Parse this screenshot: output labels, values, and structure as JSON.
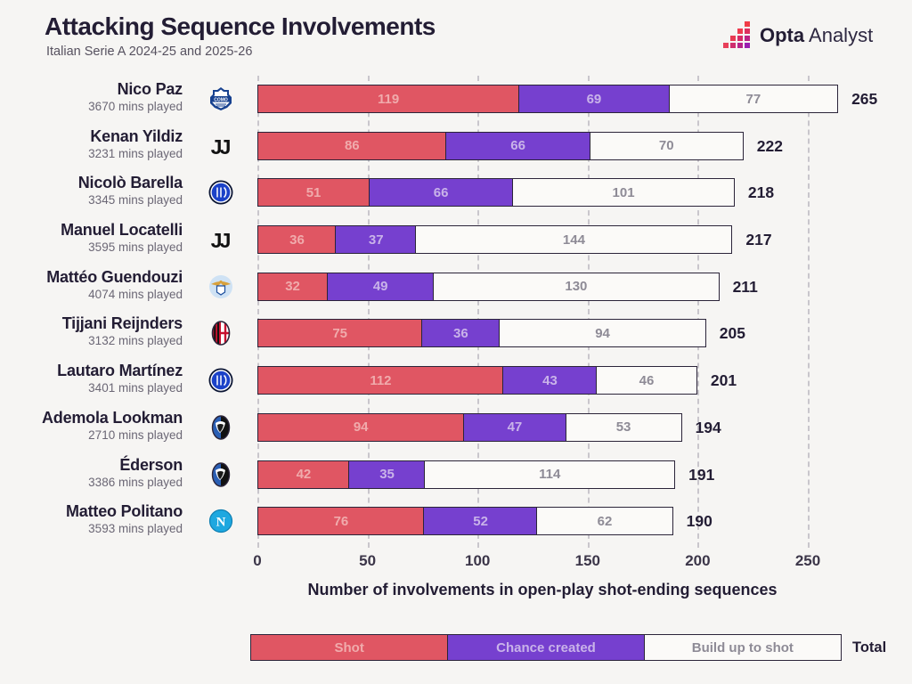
{
  "header": {
    "title": "Attacking Sequence Involvements",
    "subtitle": "Italian Serie A 2024-25 and 2025-26",
    "brand": {
      "opta": "Opta",
      "analyst": "Analyst"
    }
  },
  "chart_data": {
    "type": "bar",
    "orientation": "horizontal",
    "stacked": true,
    "xlabel": "Number of involvements in open-play shot-ending sequences",
    "xlim": [
      0,
      250
    ],
    "x_ticks": [
      0,
      50,
      100,
      150,
      200,
      250
    ],
    "grid": "dashed-vertical",
    "colors": {
      "shot": "#e05663",
      "chance_created": "#7640cf",
      "build_up_to_shot": "#fbfaf8",
      "bar_border": "#2b2439",
      "background": "#f6f5f3"
    },
    "series_names": [
      "Shot",
      "Chance created",
      "Build up to shot"
    ],
    "legend": {
      "items": [
        "Shot",
        "Chance created",
        "Build up to shot"
      ],
      "total_label": "Total",
      "position": "bottom"
    },
    "rows": [
      {
        "player": "Nico Paz",
        "mins": "3670 mins played",
        "badge": "como",
        "shot": 119,
        "chance_created": 69,
        "build_up": 77,
        "total": 265
      },
      {
        "player": "Kenan Yildiz",
        "mins": "3231 mins played",
        "badge": "juventus",
        "shot": 86,
        "chance_created": 66,
        "build_up": 70,
        "total": 222
      },
      {
        "player": "Nicolò Barella",
        "mins": "3345 mins played",
        "badge": "inter",
        "shot": 51,
        "chance_created": 66,
        "build_up": 101,
        "total": 218
      },
      {
        "player": "Manuel Locatelli",
        "mins": "3595 mins played",
        "badge": "juventus",
        "shot": 36,
        "chance_created": 37,
        "build_up": 144,
        "total": 217
      },
      {
        "player": "Mattéo Guendouzi",
        "mins": "4074 mins played",
        "badge": "lazio",
        "shot": 32,
        "chance_created": 49,
        "build_up": 130,
        "total": 211
      },
      {
        "player": "Tijjani Reijnders",
        "mins": "3132 mins played",
        "badge": "milan",
        "shot": 75,
        "chance_created": 36,
        "build_up": 94,
        "total": 205
      },
      {
        "player": "Lautaro Martínez",
        "mins": "3401 mins played",
        "badge": "inter",
        "shot": 112,
        "chance_created": 43,
        "build_up": 46,
        "total": 201
      },
      {
        "player": "Ademola Lookman",
        "mins": "2710 mins played",
        "badge": "atalanta",
        "shot": 94,
        "chance_created": 47,
        "build_up": 53,
        "total": 194
      },
      {
        "player": "Éderson",
        "mins": "3386 mins played",
        "badge": "atalanta",
        "shot": 42,
        "chance_created": 35,
        "build_up": 114,
        "total": 191
      },
      {
        "player": "Matteo Politano",
        "mins": "3593 mins played",
        "badge": "napoli",
        "shot": 76,
        "chance_created": 52,
        "build_up": 62,
        "total": 190
      }
    ]
  }
}
